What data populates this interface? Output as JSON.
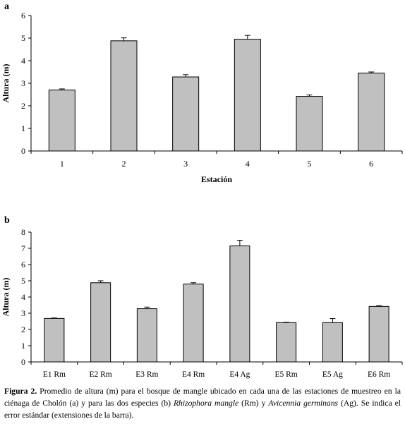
{
  "figure": {
    "caption": {
      "label": "Figura 2.",
      "part1": " Promedio de altura (m) para el bosque de mangle ubicado en cada una de las estaciones de muestreo en la ciénaga de Cholón (a) y para las dos especies (b) ",
      "species1": "Rhizophora mangle",
      "part2": " (Rm) y ",
      "species2": "Avicennia germinans",
      "part3": " (Ag). Se indica el error estándar (extensiones de la barra)."
    }
  },
  "chart_data": [
    {
      "type": "bar",
      "panel_label": "a",
      "categories": [
        "1",
        "2",
        "3",
        "4",
        "5",
        "6"
      ],
      "values": [
        2.7,
        4.88,
        3.28,
        4.95,
        2.42,
        3.45
      ],
      "errors": [
        0.05,
        0.13,
        0.1,
        0.17,
        0.06,
        0.05
      ],
      "xlabel": "Estación",
      "ylabel": "Altura (m)",
      "ylim": [
        0,
        6
      ],
      "yticks": [
        0,
        1,
        2,
        3,
        4,
        5,
        6
      ],
      "bar_color": "#c0c0c0",
      "grid": false
    },
    {
      "type": "bar",
      "panel_label": "b",
      "categories": [
        "E1 Rm",
        "E2 Rm",
        "E3 Rm",
        "E4 Rm",
        "E4 Ag",
        "E5 Rm",
        "E5 Ag",
        "E6 Rm"
      ],
      "values": [
        2.68,
        4.88,
        3.28,
        4.8,
        7.15,
        2.42,
        2.42,
        3.42
      ],
      "errors": [
        0.03,
        0.12,
        0.1,
        0.08,
        0.35,
        0.02,
        0.25,
        0.05
      ],
      "xlabel": "",
      "ylabel": "Altura (m)",
      "ylim": [
        0,
        8
      ],
      "yticks": [
        0,
        1,
        2,
        3,
        4,
        5,
        6,
        7,
        8
      ],
      "bar_color": "#c0c0c0",
      "grid": false
    }
  ]
}
